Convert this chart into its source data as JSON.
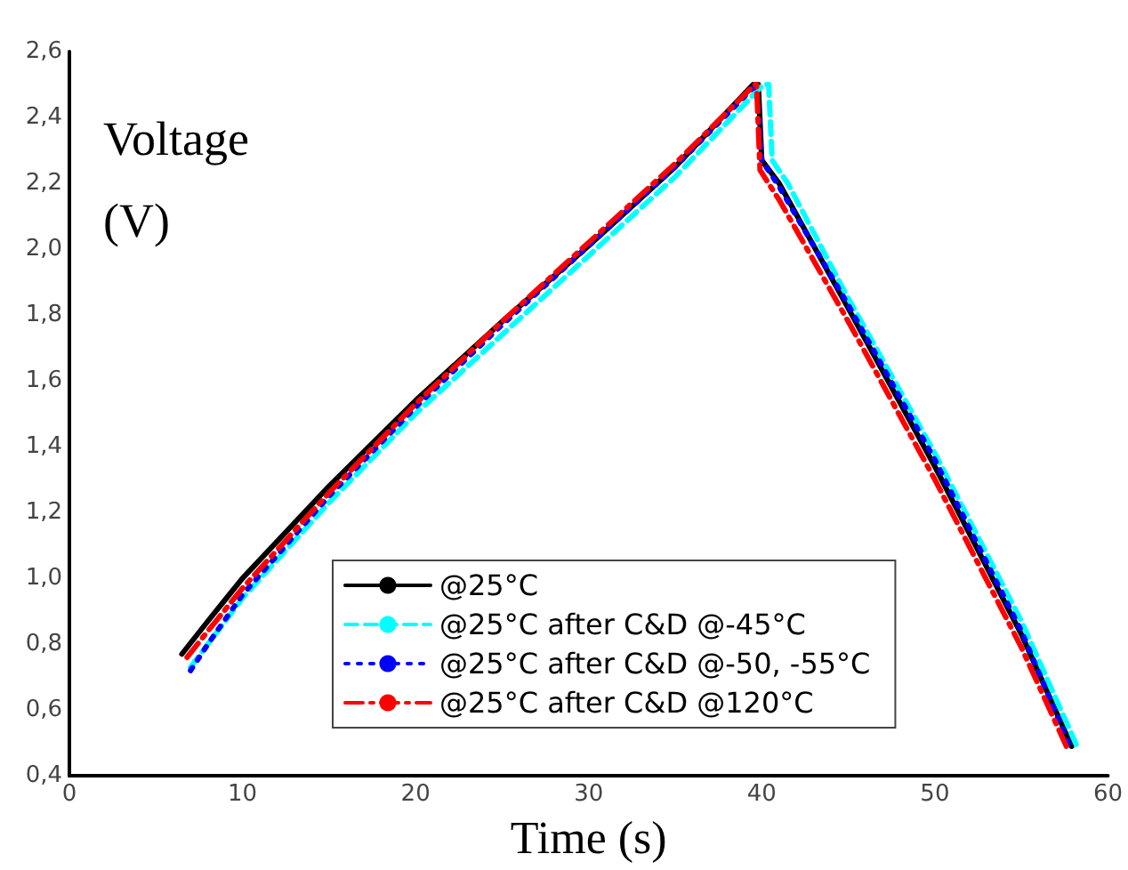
{
  "chart_data": {
    "type": "line",
    "xlabel": "Time (s)",
    "ylabel": "Voltage\n(V)",
    "xlim": [
      0,
      60
    ],
    "xticks": [
      0,
      10,
      20,
      30,
      40,
      50,
      60
    ],
    "ylim": [
      0.4,
      2.6
    ],
    "yticks": [
      {
        "value": 0.4,
        "label": "0,4"
      },
      {
        "value": 0.6,
        "label": "0,6"
      },
      {
        "value": 0.8,
        "label": "0,8"
      },
      {
        "value": 1.0,
        "label": "1,0"
      },
      {
        "value": 1.2,
        "label": "1,2"
      },
      {
        "value": 1.4,
        "label": "1,4"
      },
      {
        "value": 1.6,
        "label": "1,6"
      },
      {
        "value": 1.8,
        "label": "1,8"
      },
      {
        "value": 2.0,
        "label": "2,0"
      },
      {
        "value": 2.2,
        "label": "2,2"
      },
      {
        "value": 2.4,
        "label": "2,4"
      },
      {
        "value": 2.6,
        "label": "2,6"
      }
    ],
    "grid": false,
    "legend": "bottom",
    "marker": "none",
    "series": [
      {
        "name": "@25°C",
        "color": "#000000",
        "line_style": "solid",
        "x": [
          6.5,
          8,
          10,
          15,
          20,
          25,
          30,
          35,
          39.5,
          39.8,
          40,
          41,
          45,
          50,
          55,
          57.9
        ],
        "values": [
          0.77,
          0.87,
          1.0,
          1.28,
          1.54,
          1.78,
          2.01,
          2.25,
          2.5,
          2.5,
          2.27,
          2.2,
          1.82,
          1.34,
          0.83,
          0.49
        ]
      },
      {
        "name": "@25°C after C&D @-45°C",
        "color": "#00ffff",
        "line_style": "dashed",
        "x": [
          7,
          8,
          10,
          15,
          20,
          25,
          30,
          35,
          40.1,
          40.4,
          40.6,
          41.5,
          45,
          50,
          55,
          58.3
        ],
        "values": [
          0.73,
          0.8,
          0.94,
          1.23,
          1.5,
          1.74,
          1.98,
          2.22,
          2.5,
          2.5,
          2.27,
          2.2,
          1.85,
          1.38,
          0.87,
          0.48
        ]
      },
      {
        "name": "@25°C after C&D @-50, -55°C",
        "color": "#0000ff",
        "line_style": "dotted",
        "x": [
          7,
          8,
          10,
          15,
          20,
          25,
          30,
          35,
          39.5,
          39.7,
          40,
          41,
          45,
          50,
          55,
          57.8
        ],
        "values": [
          0.72,
          0.8,
          0.95,
          1.25,
          1.52,
          1.77,
          2.01,
          2.25,
          2.49,
          2.49,
          2.27,
          2.19,
          1.83,
          1.36,
          0.84,
          0.49
        ]
      },
      {
        "name": "@25°C after C&D @120°C",
        "color": "#ff0000",
        "line_style": "dashdot",
        "x": [
          6.8,
          8,
          10,
          15,
          20,
          25,
          30,
          35,
          39.6,
          39.7,
          39.9,
          41,
          45,
          50,
          55,
          57.6
        ],
        "values": [
          0.76,
          0.84,
          0.97,
          1.26,
          1.53,
          1.78,
          2.02,
          2.26,
          2.5,
          2.5,
          2.24,
          2.15,
          1.78,
          1.3,
          0.79,
          0.49
        ]
      }
    ]
  }
}
